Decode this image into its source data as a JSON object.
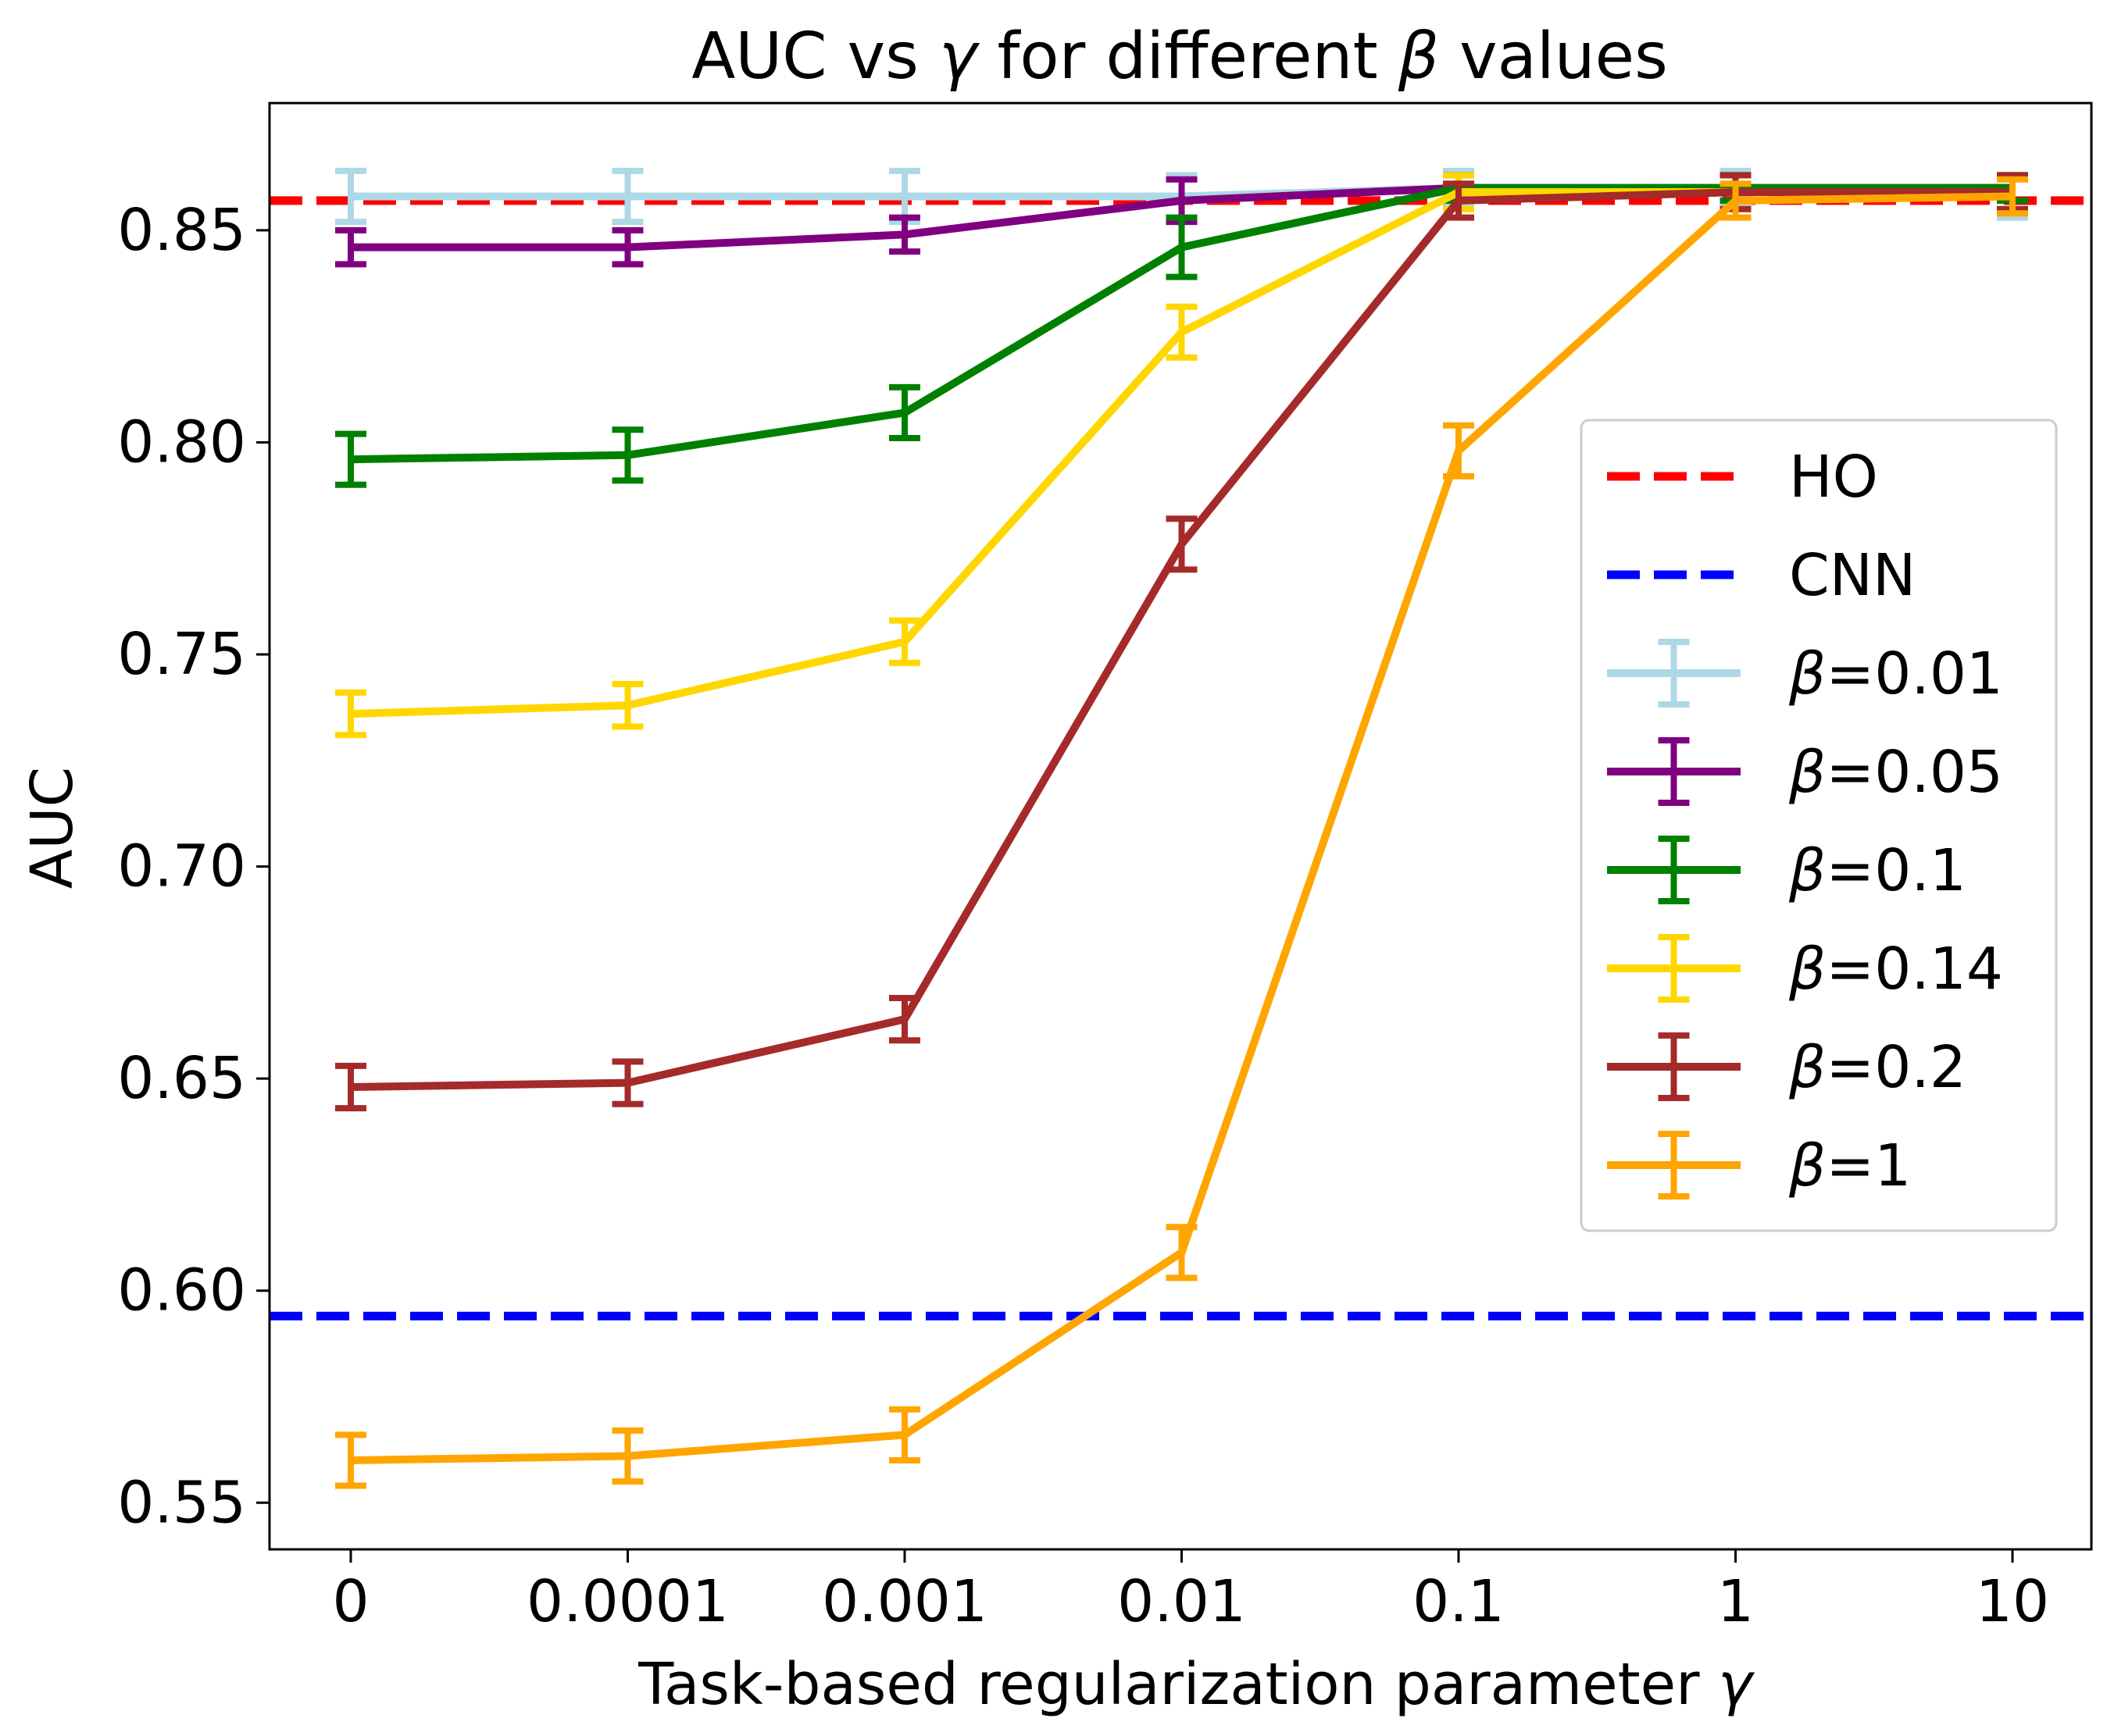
{
  "chart_data": {
    "type": "line",
    "title_prefix": "AUC vs ",
    "title_symbol": "γ",
    "title_middle": " for different ",
    "title_symbol2": "β",
    "title_suffix": " values",
    "xlabel_text": "Task-based regularization parameter ",
    "xlabel_symbol": "γ",
    "ylabel": "AUC",
    "categories": [
      "0",
      "0.0001",
      "0.001",
      "0.01",
      "0.1",
      "1",
      "10"
    ],
    "yticks": [
      "0.55",
      "0.60",
      "0.65",
      "0.70",
      "0.75",
      "0.80",
      "0.85"
    ],
    "ylim": [
      0.539,
      0.88
    ],
    "reference_lines": [
      {
        "name": "HO",
        "value": 0.857,
        "color": "#ff0000"
      },
      {
        "name": "CNN",
        "value": 0.594,
        "color": "#0000ff"
      }
    ],
    "series": [
      {
        "name": "β=0.01",
        "symbol": "β",
        "label": "=0.01",
        "color": "#add8e6",
        "values": [
          0.858,
          0.858,
          0.858,
          0.858,
          0.86,
          0.86,
          0.858
        ],
        "errors": [
          0.006,
          0.006,
          0.006,
          0.005,
          0.004,
          0.004,
          0.005
        ]
      },
      {
        "name": "β=0.05",
        "symbol": "β",
        "label": "=0.05",
        "color": "#800080",
        "values": [
          0.846,
          0.846,
          0.849,
          0.857,
          0.86,
          0.86,
          0.86
        ],
        "errors": [
          0.004,
          0.004,
          0.004,
          0.005,
          0.003,
          0.003,
          0.003
        ]
      },
      {
        "name": "β=0.1",
        "symbol": "β",
        "label": "=0.1",
        "color": "#008000",
        "values": [
          0.796,
          0.797,
          0.807,
          0.846,
          0.86,
          0.86,
          0.86
        ],
        "errors": [
          0.006,
          0.006,
          0.006,
          0.007,
          0.003,
          0.003,
          0.003
        ]
      },
      {
        "name": "β=0.14",
        "symbol": "β",
        "label": "=0.14",
        "color": "#ffd700",
        "values": [
          0.736,
          0.738,
          0.753,
          0.826,
          0.859,
          0.859,
          0.859
        ],
        "errors": [
          0.005,
          0.005,
          0.005,
          0.006,
          0.004,
          0.004,
          0.004
        ]
      },
      {
        "name": "β=0.2",
        "symbol": "β",
        "label": "=0.2",
        "color": "#a52a2a",
        "values": [
          0.648,
          0.649,
          0.664,
          0.776,
          0.857,
          0.859,
          0.859
        ],
        "errors": [
          0.005,
          0.005,
          0.005,
          0.006,
          0.004,
          0.004,
          0.004
        ]
      },
      {
        "name": "β=1",
        "symbol": "β",
        "label": "=1",
        "color": "#ffa500",
        "values": [
          0.56,
          0.561,
          0.566,
          0.609,
          0.798,
          0.857,
          0.858
        ],
        "errors": [
          0.006,
          0.006,
          0.006,
          0.006,
          0.006,
          0.004,
          0.004
        ]
      }
    ],
    "legend": {
      "position": "center-right"
    }
  }
}
